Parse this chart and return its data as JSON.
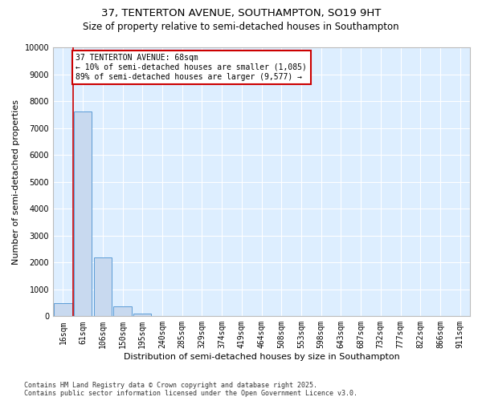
{
  "title_line1": "37, TENTERTON AVENUE, SOUTHAMPTON, SO19 9HT",
  "title_line2": "Size of property relative to semi-detached houses in Southampton",
  "xlabel": "Distribution of semi-detached houses by size in Southampton",
  "ylabel": "Number of semi-detached properties",
  "categories": [
    "16sqm",
    "61sqm",
    "106sqm",
    "150sqm",
    "195sqm",
    "240sqm",
    "285sqm",
    "329sqm",
    "374sqm",
    "419sqm",
    "464sqm",
    "508sqm",
    "553sqm",
    "598sqm",
    "643sqm",
    "687sqm",
    "732sqm",
    "777sqm",
    "822sqm",
    "866sqm",
    "911sqm"
  ],
  "values": [
    500,
    7600,
    2200,
    380,
    100,
    0,
    0,
    0,
    0,
    0,
    0,
    0,
    0,
    0,
    0,
    0,
    0,
    0,
    0,
    0,
    0
  ],
  "bar_color": "#c8d9ef",
  "bar_edge_color": "#5b9bd5",
  "red_line_x": 0.5,
  "annotation_text_line1": "37 TENTERTON AVENUE: 68sqm",
  "annotation_text_line2": "← 10% of semi-detached houses are smaller (1,085)",
  "annotation_text_line3": "89% of semi-detached houses are larger (9,577) →",
  "annotation_box_color": "#ffffff",
  "annotation_border_color": "#cc0000",
  "vline_color": "#cc0000",
  "ylim": [
    0,
    10000
  ],
  "yticks": [
    0,
    1000,
    2000,
    3000,
    4000,
    5000,
    6000,
    7000,
    8000,
    9000,
    10000
  ],
  "background_color": "#ddeeff",
  "grid_color": "#ffffff",
  "fig_background": "#ffffff",
  "footer_line1": "Contains HM Land Registry data © Crown copyright and database right 2025.",
  "footer_line2": "Contains public sector information licensed under the Open Government Licence v3.0.",
  "title_fontsize": 9.5,
  "subtitle_fontsize": 8.5,
  "axis_label_fontsize": 8,
  "tick_fontsize": 7,
  "annotation_fontsize": 7,
  "footer_fontsize": 6
}
